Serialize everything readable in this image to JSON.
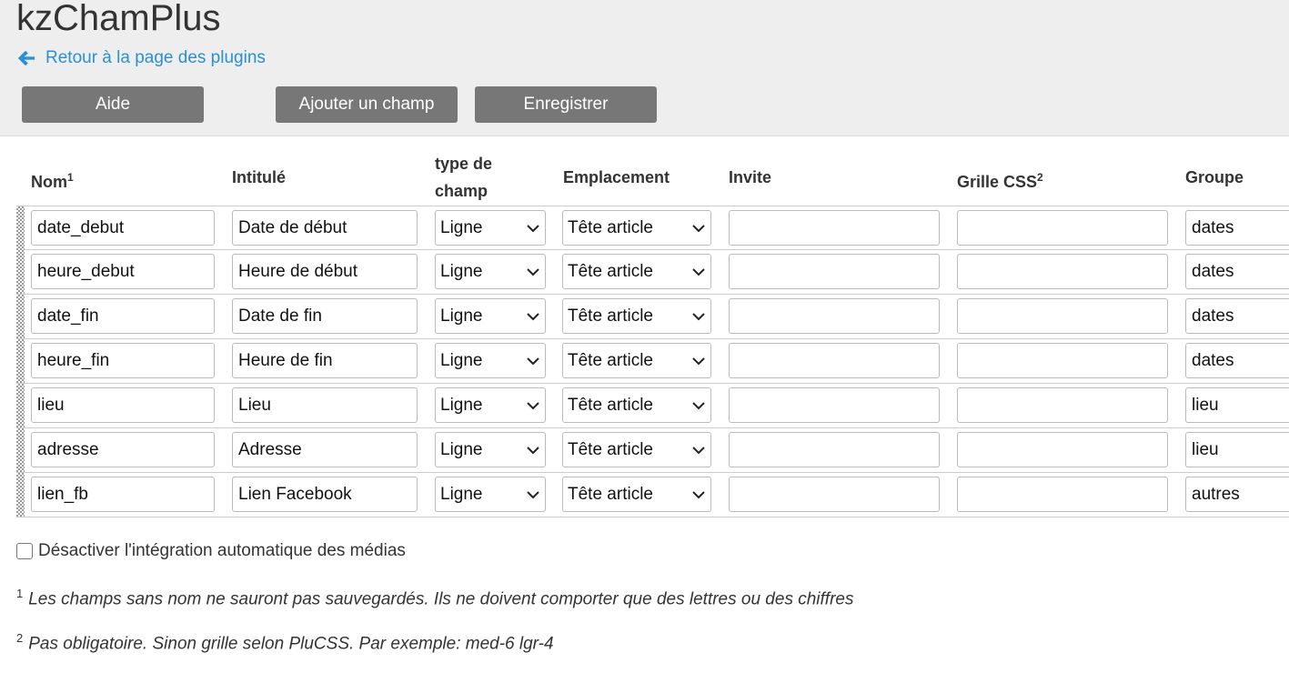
{
  "header": {
    "title": "kzChamPlus",
    "back_link": "Retour à la page des plugins",
    "buttons": {
      "help": "Aide",
      "add_field": "Ajouter un champ",
      "save": "Enregistrer"
    }
  },
  "table": {
    "columns": {
      "name": "Nom",
      "name_sup": "1",
      "label": "Intitulé",
      "type_line1": "type de",
      "type_line2": "champ",
      "location": "Emplacement",
      "prompt": "Invite",
      "grid": "Grille CSS",
      "grid_sup": "2",
      "group": "Groupe"
    },
    "rows": [
      {
        "name": "date_debut",
        "label": "Date de début",
        "type": "Ligne",
        "location": "Tête article",
        "prompt": "",
        "grid": "",
        "group": "dates"
      },
      {
        "name": "heure_debut",
        "label": "Heure de début",
        "type": "Ligne",
        "location": "Tête article",
        "prompt": "",
        "grid": "",
        "group": "dates"
      },
      {
        "name": "date_fin",
        "label": "Date de fin",
        "type": "Ligne",
        "location": "Tête article",
        "prompt": "",
        "grid": "",
        "group": "dates"
      },
      {
        "name": "heure_fin",
        "label": "Heure de fin",
        "type": "Ligne",
        "location": "Tête article",
        "prompt": "",
        "grid": "",
        "group": "dates"
      },
      {
        "name": "lieu",
        "label": "Lieu",
        "type": "Ligne",
        "location": "Tête article",
        "prompt": "",
        "grid": "",
        "group": "lieu"
      },
      {
        "name": "adresse",
        "label": "Adresse",
        "type": "Ligne",
        "location": "Tête article",
        "prompt": "",
        "grid": "",
        "group": "lieu"
      },
      {
        "name": "lien_fb",
        "label": "Lien Facebook",
        "type": "Ligne",
        "location": "Tête article",
        "prompt": "",
        "grid": "",
        "group": "autres"
      }
    ]
  },
  "options": {
    "disable_media": "Désactiver l'intégration automatique des médias",
    "disable_media_checked": false
  },
  "notes": [
    {
      "sup": "1",
      "text": "Les champs sans nom ne sauront pas sauvegardés. Ils ne doivent comporter que des lettres ou des chiffres"
    },
    {
      "sup": "2",
      "text": "Pas obligatoire. Sinon grille selon PluCSS. Par exemple: med-6 lgr-4"
    }
  ],
  "colors": {
    "link": "#2a8fd8",
    "button": "#777777",
    "header_bg": "#eeeeee"
  }
}
